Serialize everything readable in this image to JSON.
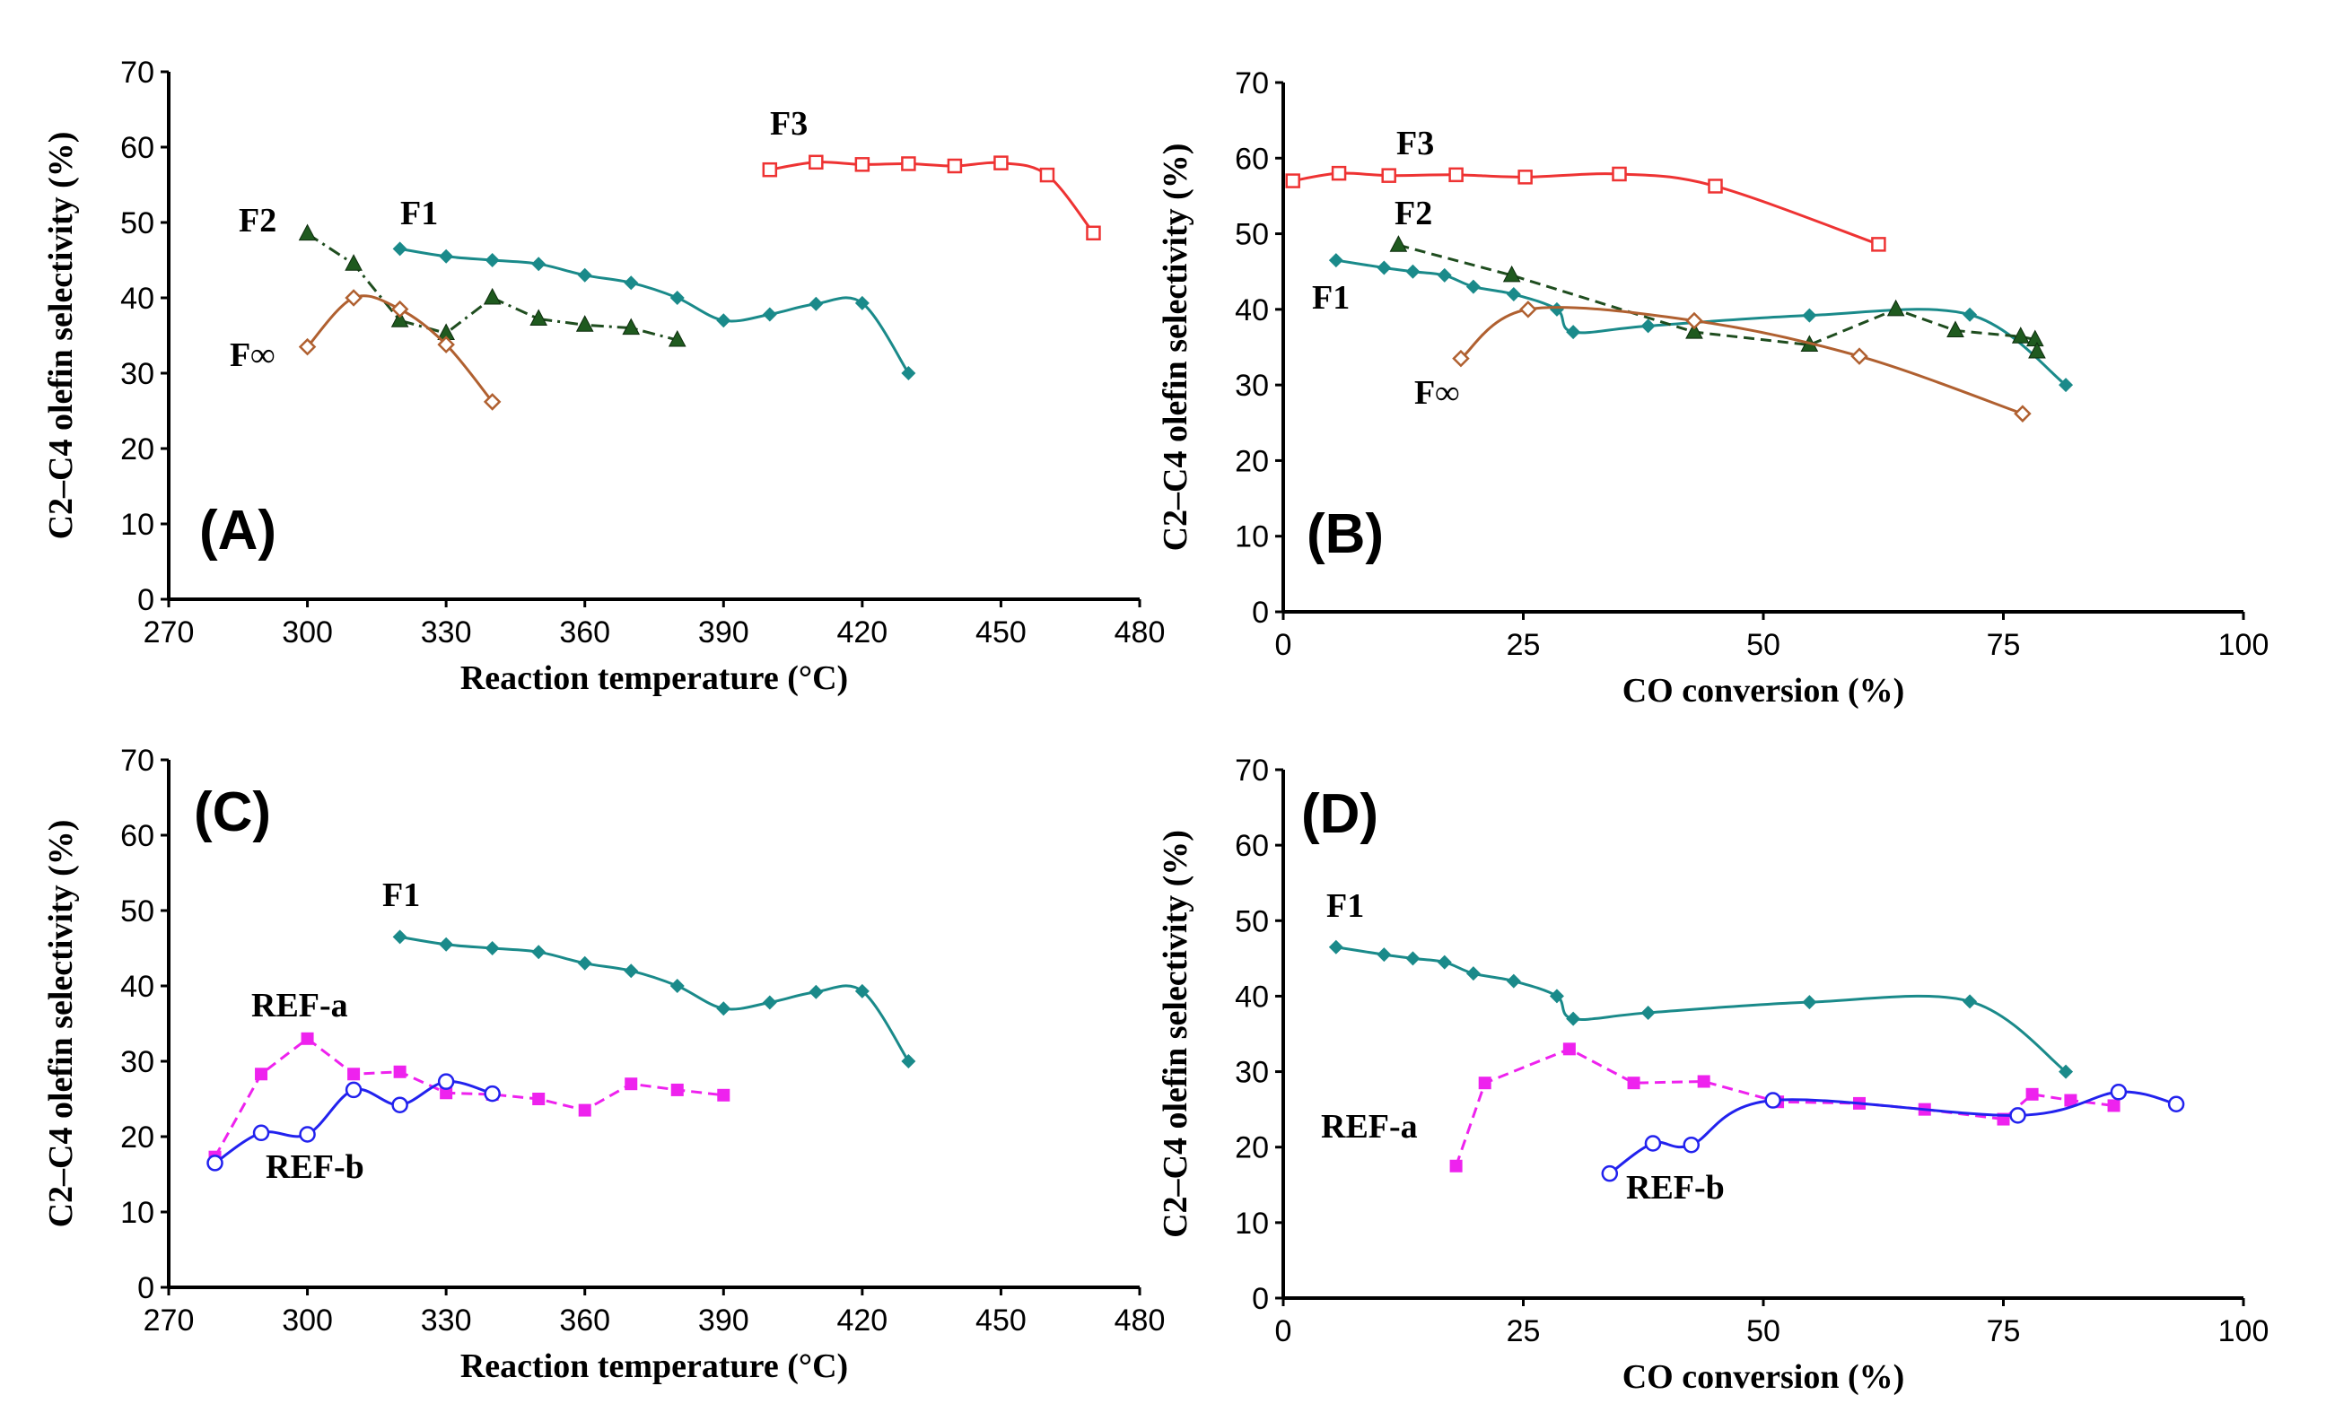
{
  "chart_data": [
    {
      "type": "line",
      "panel": "(A)",
      "xlabel": "Reaction temperature (°C)",
      "ylabel": "C2–C4 olefin selectivity (%)",
      "xlim": [
        270,
        480
      ],
      "xticks": [
        270,
        300,
        330,
        360,
        390,
        420,
        450,
        480
      ],
      "ylim": [
        0,
        70
      ],
      "yticks": [
        0,
        10,
        20,
        30,
        40,
        50,
        60,
        70
      ],
      "series": [
        {
          "name": "F1",
          "color": "#1a8a8a",
          "marker": "diamond",
          "style": "solid",
          "smooth": true,
          "x": [
            320,
            330,
            340,
            350,
            360,
            370,
            380,
            390,
            400,
            410,
            420,
            430
          ],
          "y": [
            46.5,
            45.5,
            45,
            44.5,
            43,
            42,
            40,
            37,
            37.8,
            39.2,
            39.3,
            30
          ]
        },
        {
          "name": "F2",
          "color": "#1f4d1f",
          "marker": "triangle",
          "style": "dashdot",
          "smooth": false,
          "x": [
            300,
            310,
            320,
            330,
            340,
            350,
            360,
            370,
            380
          ],
          "y": [
            48.5,
            44.5,
            37,
            35.3,
            40,
            37.2,
            36.4,
            36,
            34.4
          ]
        },
        {
          "name": "F3",
          "color": "#ee3333",
          "marker": "square-open",
          "style": "solid",
          "smooth": true,
          "x": [
            400,
            410,
            420,
            430,
            440,
            450,
            460,
            470
          ],
          "y": [
            57,
            58,
            57.7,
            57.8,
            57.5,
            57.9,
            56.3,
            48.6
          ]
        },
        {
          "name": "F∞",
          "color": "#b06030",
          "marker": "diamond-open",
          "style": "solid",
          "smooth": true,
          "x": [
            300,
            310,
            320,
            330,
            340
          ],
          "y": [
            33.5,
            40,
            38.5,
            33.8,
            26.2
          ]
        }
      ]
    },
    {
      "type": "line",
      "panel": "(B)",
      "xlabel": "CO conversion (%)",
      "ylabel": "C2–C4 olefin selectivity (%)",
      "xlim": [
        0,
        100
      ],
      "xticks": [
        0,
        25,
        50,
        75,
        100
      ],
      "ylim": [
        0,
        70
      ],
      "yticks": [
        0,
        10,
        20,
        30,
        40,
        50,
        60,
        70
      ],
      "series": [
        {
          "name": "F1",
          "color": "#1a8a8a",
          "marker": "diamond",
          "style": "solid",
          "smooth": true,
          "x": [
            5.5,
            10.5,
            13.5,
            16.8,
            19.8,
            24,
            28.5,
            30.2,
            38,
            54.8,
            71.5,
            81.5
          ],
          "y": [
            46.5,
            45.5,
            45,
            44.5,
            43,
            42,
            40,
            37,
            37.8,
            39.2,
            39.3,
            30
          ]
        },
        {
          "name": "F2",
          "color": "#1f4d1f",
          "marker": "triangle",
          "style": "dashed",
          "smooth": false,
          "x": [
            12,
            23.8,
            42.8,
            54.8,
            63.8,
            70,
            76.8,
            78.3,
            78.5
          ],
          "y": [
            48.5,
            44.5,
            37,
            35.3,
            40,
            37.2,
            36.4,
            36,
            34.4
          ]
        },
        {
          "name": "F3",
          "color": "#ee3333",
          "marker": "square-open",
          "style": "solid",
          "smooth": true,
          "x": [
            1,
            5.8,
            11,
            18,
            25.2,
            35,
            45,
            62
          ],
          "y": [
            57,
            58,
            57.7,
            57.8,
            57.5,
            57.9,
            56.3,
            48.6
          ]
        },
        {
          "name": "F∞",
          "color": "#b06030",
          "marker": "diamond-open",
          "style": "solid",
          "smooth": true,
          "x": [
            18.5,
            25.5,
            42.8,
            60,
            77
          ],
          "y": [
            33.5,
            40,
            38.5,
            33.8,
            26.2
          ]
        }
      ]
    },
    {
      "type": "line",
      "panel": "(C)",
      "xlabel": "Reaction temperature (°C)",
      "ylabel": "C2–C4 olefin selectivity (%)",
      "xlim": [
        270,
        480
      ],
      "xticks": [
        270,
        300,
        330,
        360,
        390,
        420,
        450,
        480
      ],
      "ylim": [
        0,
        70
      ],
      "yticks": [
        0,
        10,
        20,
        30,
        40,
        50,
        60,
        70
      ],
      "series": [
        {
          "name": "F1",
          "color": "#1a8a8a",
          "marker": "diamond",
          "style": "solid",
          "smooth": true,
          "x": [
            320,
            330,
            340,
            350,
            360,
            370,
            380,
            390,
            400,
            410,
            420,
            430
          ],
          "y": [
            46.5,
            45.5,
            45,
            44.5,
            43,
            42,
            40,
            37,
            37.8,
            39.2,
            39.3,
            30
          ]
        },
        {
          "name": "REF-a",
          "color": "#ee22ee",
          "marker": "square",
          "style": "dashed",
          "smooth": false,
          "x": [
            280,
            290,
            300,
            310,
            320,
            330,
            340,
            350,
            360,
            370,
            380,
            390
          ],
          "y": [
            17.3,
            28.3,
            33,
            28.3,
            28.6,
            25.8,
            25.6,
            25,
            23.5,
            27,
            26.2,
            25.5
          ]
        },
        {
          "name": "REF-b",
          "color": "#2222ee",
          "marker": "circle-open",
          "style": "solid",
          "smooth": true,
          "x": [
            280,
            290,
            300,
            310,
            320,
            330,
            340
          ],
          "y": [
            16.5,
            20.5,
            20.3,
            26.2,
            24.2,
            27.3,
            25.7
          ]
        }
      ]
    },
    {
      "type": "line",
      "panel": "(D)",
      "xlabel": "CO conversion (%)",
      "ylabel": "C2–C4 olefin selectivity (%)",
      "xlim": [
        0,
        100
      ],
      "xticks": [
        0,
        25,
        50,
        75,
        100
      ],
      "ylim": [
        0,
        70
      ],
      "yticks": [
        0,
        10,
        20,
        30,
        40,
        50,
        60,
        70
      ],
      "series": [
        {
          "name": "F1",
          "color": "#1a8a8a",
          "marker": "diamond",
          "style": "solid",
          "smooth": true,
          "x": [
            5.5,
            10.5,
            13.5,
            16.8,
            19.8,
            24,
            28.5,
            30.2,
            38,
            54.8,
            71.5,
            81.5
          ],
          "y": [
            46.5,
            45.5,
            45,
            44.5,
            43,
            42,
            40,
            37,
            37.8,
            39.2,
            39.3,
            30
          ]
        },
        {
          "name": "REF-a",
          "color": "#ee22ee",
          "marker": "square",
          "style": "dashed",
          "smooth": false,
          "x": [
            18,
            21,
            29.8,
            36.5,
            43.8,
            51.5,
            60,
            66.8,
            75,
            78,
            82,
            86.5
          ],
          "y": [
            17.5,
            28.5,
            33,
            28.5,
            28.7,
            26,
            25.8,
            25,
            23.7,
            27,
            26.2,
            25.5
          ]
        },
        {
          "name": "REF-b",
          "color": "#2222ee",
          "marker": "circle-open",
          "style": "solid",
          "smooth": true,
          "x": [
            34,
            38.5,
            42.5,
            51,
            76.5,
            87,
            93
          ],
          "y": [
            16.5,
            20.5,
            20.3,
            26.2,
            24.2,
            27.3,
            25.7
          ]
        }
      ]
    }
  ]
}
